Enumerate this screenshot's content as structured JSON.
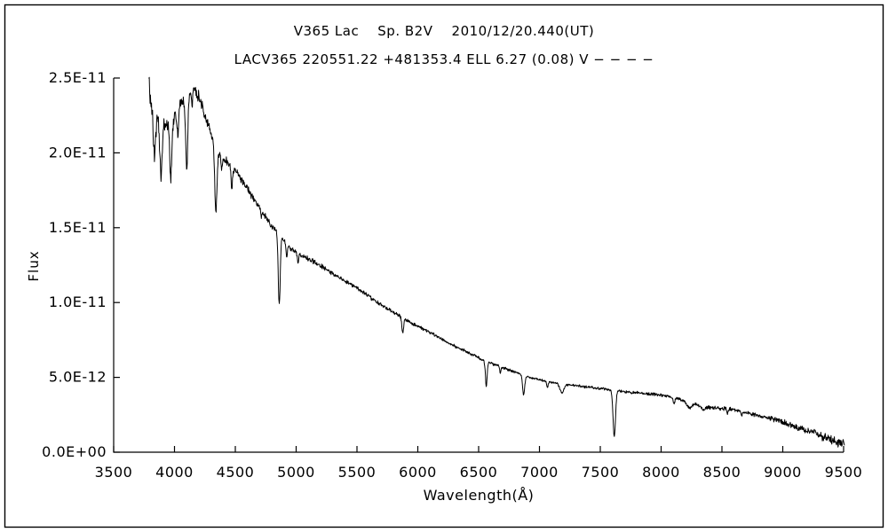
{
  "chart_data": {
    "type": "line",
    "title": "V365 Lac    Sp. B2V    2010/12/20.440(UT)",
    "subtitle": "LACV365 220551.22 +481353.4 ELL 6.27 (0.08) V − − − −",
    "xlabel": "Wavelength(Å)",
    "ylabel": "Flux",
    "series_name": "V365 Lac spectrum",
    "line_color": "#000000",
    "xlim": [
      3500,
      9500
    ],
    "ylim": [
      0,
      2.5e-11
    ],
    "flux_scale": 1e-12,
    "x_ticks": [
      3500,
      4000,
      4500,
      5000,
      5500,
      6000,
      6500,
      7000,
      7500,
      8000,
      8500,
      9000,
      9500
    ],
    "y_ticks": [
      {
        "v": 0,
        "label": "0.0E+00"
      },
      {
        "v": 5,
        "label": "5.0E-12"
      },
      {
        "v": 10,
        "label": "1.0E-11"
      },
      {
        "v": 15,
        "label": "1.5E-11"
      },
      {
        "v": 20,
        "label": "2.0E-11"
      },
      {
        "v": 25,
        "label": "2.5E-11"
      }
    ],
    "wavelength_start": 3790,
    "wavelength_end": 9510,
    "sample_step": 3,
    "noise_seed": 20101220,
    "continuum_e12": [
      [
        3790,
        24.8
      ],
      [
        3805,
        23.6
      ],
      [
        3830,
        22.7
      ],
      [
        3870,
        22.2
      ],
      [
        3915,
        21.9
      ],
      [
        3960,
        22.2
      ],
      [
        4010,
        22.7
      ],
      [
        4060,
        23.3
      ],
      [
        4110,
        23.9
      ],
      [
        4160,
        24.2
      ],
      [
        4205,
        23.7
      ],
      [
        4255,
        22.4
      ],
      [
        4305,
        21.1
      ],
      [
        4355,
        20.1
      ],
      [
        4420,
        19.5
      ],
      [
        4500,
        18.8
      ],
      [
        4600,
        17.6
      ],
      [
        4700,
        16.3
      ],
      [
        4800,
        15.1
      ],
      [
        4870,
        14.4
      ],
      [
        4950,
        13.6
      ],
      [
        5050,
        13.1
      ],
      [
        5150,
        12.7
      ],
      [
        5250,
        12.2
      ],
      [
        5350,
        11.7
      ],
      [
        5450,
        11.2
      ],
      [
        5550,
        10.7
      ],
      [
        5650,
        10.1
      ],
      [
        5750,
        9.6
      ],
      [
        5850,
        9.1
      ],
      [
        5950,
        8.6
      ],
      [
        6050,
        8.2
      ],
      [
        6150,
        7.8
      ],
      [
        6250,
        7.3
      ],
      [
        6350,
        6.9
      ],
      [
        6450,
        6.5
      ],
      [
        6550,
        6.1
      ],
      [
        6650,
        5.8
      ],
      [
        6750,
        5.5
      ],
      [
        6850,
        5.2
      ],
      [
        6950,
        4.95
      ],
      [
        7050,
        4.75
      ],
      [
        7150,
        4.6
      ],
      [
        7250,
        4.5
      ],
      [
        7350,
        4.4
      ],
      [
        7450,
        4.3
      ],
      [
        7550,
        4.2
      ],
      [
        7650,
        4.1
      ],
      [
        7750,
        4.0
      ],
      [
        7850,
        3.95
      ],
      [
        7950,
        3.85
      ],
      [
        8050,
        3.75
      ],
      [
        8150,
        3.55
      ],
      [
        8250,
        3.25
      ],
      [
        8350,
        3.05
      ],
      [
        8450,
        2.95
      ],
      [
        8550,
        2.9
      ],
      [
        8650,
        2.75
      ],
      [
        8750,
        2.55
      ],
      [
        8850,
        2.35
      ],
      [
        8950,
        2.15
      ],
      [
        9050,
        1.9
      ],
      [
        9150,
        1.6
      ],
      [
        9250,
        1.3
      ],
      [
        9350,
        1.0
      ],
      [
        9450,
        0.7
      ],
      [
        9510,
        0.5
      ]
    ],
    "absorption_lines": [
      {
        "center": 3835,
        "depth": 3.0,
        "sigma": 9
      },
      {
        "center": 3889,
        "depth": 3.6,
        "sigma": 9
      },
      {
        "center": 3970,
        "depth": 4.0,
        "sigma": 9
      },
      {
        "center": 4026,
        "depth": 1.6,
        "sigma": 7
      },
      {
        "center": 4101,
        "depth": 4.6,
        "sigma": 9
      },
      {
        "center": 4144,
        "depth": 0.8,
        "sigma": 5
      },
      {
        "center": 4340,
        "depth": 4.4,
        "sigma": 9
      },
      {
        "center": 4388,
        "depth": 0.8,
        "sigma": 5
      },
      {
        "center": 4471,
        "depth": 1.4,
        "sigma": 6
      },
      {
        "center": 4713,
        "depth": 0.5,
        "sigma": 5
      },
      {
        "center": 4861,
        "depth": 4.6,
        "sigma": 8
      },
      {
        "center": 4922,
        "depth": 0.9,
        "sigma": 5
      },
      {
        "center": 5015,
        "depth": 0.6,
        "sigma": 5
      },
      {
        "center": 5876,
        "depth": 1.0,
        "sigma": 7
      },
      {
        "center": 6563,
        "depth": 1.7,
        "sigma": 7
      },
      {
        "center": 6678,
        "depth": 0.45,
        "sigma": 5
      },
      {
        "center": 6870,
        "depth": 1.3,
        "sigma": 9
      },
      {
        "center": 7065,
        "depth": 0.4,
        "sigma": 5
      },
      {
        "center": 7185,
        "depth": 0.6,
        "sigma": 16
      },
      {
        "center": 7615,
        "depth": 3.1,
        "sigma": 10
      },
      {
        "center": 8105,
        "depth": 0.4,
        "sigma": 7
      },
      {
        "center": 8230,
        "depth": 0.35,
        "sigma": 18
      },
      {
        "center": 8350,
        "depth": 0.25,
        "sigma": 12
      },
      {
        "center": 8545,
        "depth": 0.3,
        "sigma": 6
      },
      {
        "center": 8665,
        "depth": 0.3,
        "sigma": 6
      }
    ],
    "noise_amplitude_e12": [
      [
        3790,
        0.55
      ],
      [
        4000,
        0.45
      ],
      [
        4200,
        0.3
      ],
      [
        4500,
        0.2
      ],
      [
        4900,
        0.15
      ],
      [
        5500,
        0.1
      ],
      [
        6200,
        0.08
      ],
      [
        7000,
        0.07
      ],
      [
        7800,
        0.07
      ],
      [
        8300,
        0.09
      ],
      [
        8900,
        0.13
      ],
      [
        9200,
        0.2
      ],
      [
        9510,
        0.28
      ]
    ]
  }
}
